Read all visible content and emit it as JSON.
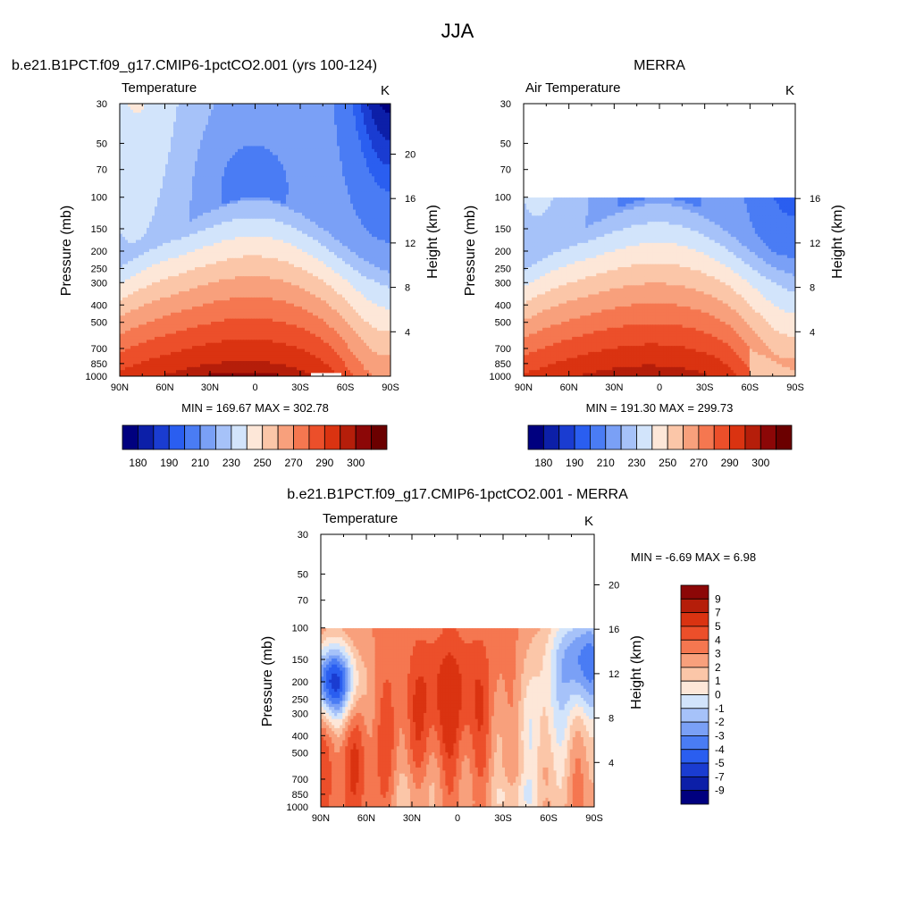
{
  "figure": {
    "title": "JJA",
    "background": "#ffffff"
  },
  "chart_data": [
    {
      "type": "heatmap",
      "panel": "model",
      "title": "b.e21.B1PCT.f09_g17.CMIP6-1pctCO2.001 (yrs 100-124)",
      "subtitle_left": "Temperature",
      "units": "K",
      "xlabel": "",
      "ylabel": "Pressure (mb)",
      "ylabel_right": "Height (km)",
      "x_ticks": [
        "90N",
        "60N",
        "30N",
        "0",
        "30S",
        "60S",
        "90S"
      ],
      "x_tick_values": [
        90,
        60,
        30,
        0,
        -30,
        -60,
        -90
      ],
      "y_ticks": [
        "30",
        "50",
        "70",
        "100",
        "150",
        "200",
        "250",
        "300",
        "400",
        "500",
        "700",
        "850",
        "1000"
      ],
      "y_tick_values": [
        30,
        50,
        70,
        100,
        150,
        200,
        250,
        300,
        400,
        500,
        700,
        850,
        1000
      ],
      "height_ticks": [
        "4",
        "8",
        "12",
        "16",
        "20"
      ],
      "height_tick_values": [
        4,
        8,
        12,
        16,
        20
      ],
      "plim": [
        30,
        1000
      ],
      "data_top_pressure": 30,
      "stats": "MIN = 169.67  MAX = 302.78",
      "min": 169.67,
      "max": 302.78,
      "colorbar_orientation": "horizontal",
      "colorbar_labels": [
        "180",
        "190",
        "210",
        "230",
        "250",
        "270",
        "290",
        "300"
      ],
      "colorbar_label_positions": [
        1,
        3,
        5,
        7,
        9,
        11,
        13,
        15
      ],
      "levels": [
        175,
        180,
        185,
        190,
        200,
        210,
        220,
        230,
        240,
        250,
        260,
        270,
        280,
        290,
        295,
        300
      ],
      "colors": [
        "#00007f",
        "#0c1fa8",
        "#1a3cd1",
        "#2a5ef0",
        "#4a7cf4",
        "#7aa0f6",
        "#a6c2f9",
        "#d2e4fb",
        "#fde7d8",
        "#fbc6a8",
        "#f8a07c",
        "#f57750",
        "#ec4f2a",
        "#da3311",
        "#b51e0a",
        "#8c0707",
        "#6b0000"
      ]
    },
    {
      "type": "heatmap",
      "panel": "obs",
      "title": "MERRA",
      "subtitle_left": "Air Temperature",
      "units": "K",
      "xlabel": "",
      "ylabel": "Pressure (mb)",
      "ylabel_right": "Height (km)",
      "x_ticks": [
        "90N",
        "60N",
        "30N",
        "0",
        "30S",
        "60S",
        "90S"
      ],
      "x_tick_values": [
        90,
        60,
        30,
        0,
        -30,
        -60,
        -90
      ],
      "y_ticks": [
        "30",
        "50",
        "70",
        "100",
        "150",
        "200",
        "250",
        "300",
        "400",
        "500",
        "700",
        "850",
        "1000"
      ],
      "y_tick_values": [
        30,
        50,
        70,
        100,
        150,
        200,
        250,
        300,
        400,
        500,
        700,
        850,
        1000
      ],
      "height_ticks": [
        "4",
        "8",
        "12",
        "16"
      ],
      "height_tick_values": [
        4,
        8,
        12,
        16
      ],
      "plim": [
        30,
        1000
      ],
      "data_top_pressure": 100,
      "stats": "MIN = 191.30  MAX = 299.73",
      "min": 191.3,
      "max": 299.73,
      "colorbar_orientation": "horizontal",
      "colorbar_labels": [
        "180",
        "190",
        "210",
        "230",
        "250",
        "270",
        "290",
        "300"
      ],
      "colorbar_label_positions": [
        1,
        3,
        5,
        7,
        9,
        11,
        13,
        15
      ],
      "levels": [
        175,
        180,
        185,
        190,
        200,
        210,
        220,
        230,
        240,
        250,
        260,
        270,
        280,
        290,
        295,
        300
      ],
      "colors": [
        "#00007f",
        "#0c1fa8",
        "#1a3cd1",
        "#2a5ef0",
        "#4a7cf4",
        "#7aa0f6",
        "#a6c2f9",
        "#d2e4fb",
        "#fde7d8",
        "#fbc6a8",
        "#f8a07c",
        "#f57750",
        "#ec4f2a",
        "#da3311",
        "#b51e0a",
        "#8c0707",
        "#6b0000"
      ]
    },
    {
      "type": "heatmap",
      "panel": "diff",
      "title": "b.e21.B1PCT.f09_g17.CMIP6-1pctCO2.001 - MERRA",
      "subtitle_left": "Temperature",
      "units": "K",
      "xlabel": "",
      "ylabel": "Pressure (mb)",
      "ylabel_right": "Height (km)",
      "x_ticks": [
        "90N",
        "60N",
        "30N",
        "0",
        "30S",
        "60S",
        "90S"
      ],
      "x_tick_values": [
        90,
        60,
        30,
        0,
        -30,
        -60,
        -90
      ],
      "y_ticks": [
        "30",
        "50",
        "70",
        "100",
        "150",
        "200",
        "250",
        "300",
        "400",
        "500",
        "700",
        "850",
        "1000"
      ],
      "y_tick_values": [
        30,
        50,
        70,
        100,
        150,
        200,
        250,
        300,
        400,
        500,
        700,
        850,
        1000
      ],
      "height_ticks": [
        "4",
        "8",
        "12",
        "16",
        "20"
      ],
      "height_tick_values": [
        4,
        8,
        12,
        16,
        20
      ],
      "plim": [
        30,
        1000
      ],
      "data_top_pressure": 100,
      "stats": "MIN =  -6.69  MAX =   6.98",
      "min": -6.69,
      "max": 6.98,
      "colorbar_orientation": "vertical",
      "colorbar_labels": [
        "9",
        "7",
        "5",
        "4",
        "3",
        "2",
        "1",
        "0",
        "-1",
        "-2",
        "-3",
        "-4",
        "-5",
        "-7",
        "-9"
      ],
      "colorbar_label_positions": [
        1,
        2,
        3,
        4,
        5,
        6,
        7,
        8,
        9,
        10,
        11,
        12,
        13,
        14,
        15
      ],
      "levels": [
        -9,
        -7,
        -5,
        -4,
        -3,
        -2,
        -1,
        0,
        1,
        2,
        3,
        4,
        5,
        7,
        9
      ],
      "colors": [
        "#00007f",
        "#0c1fa8",
        "#1a3cd1",
        "#2a5ef0",
        "#4a7cf4",
        "#7aa0f6",
        "#a6c2f9",
        "#d2e4fb",
        "#fde7d8",
        "#fbc6a8",
        "#f8a07c",
        "#f57750",
        "#ec4f2a",
        "#da3311",
        "#b51e0a",
        "#8c0707"
      ]
    }
  ]
}
